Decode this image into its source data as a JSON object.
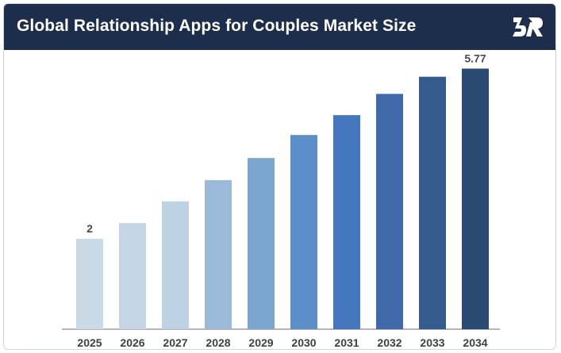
{
  "header": {
    "title": "Global Relationship Apps for Couples Market Size",
    "logo_icon": "brand-logo-icon"
  },
  "colors": {
    "header_bg": "#1d2e4d",
    "bars": [
      "#c9d9e6",
      "#c4d6e5",
      "#bdd2e3",
      "#9bbad8",
      "#7aa6cf",
      "#5c8fc9",
      "#4577be",
      "#3f69a9",
      "#355b8e",
      "#2b4a72"
    ]
  },
  "chart_data": {
    "type": "bar",
    "title": "Global Relationship Apps for Couples Market Size",
    "categories": [
      "2025",
      "2026",
      "2027",
      "2028",
      "2029",
      "2030",
      "2031",
      "2032",
      "2033",
      "2034"
    ],
    "values": [
      2,
      2.35,
      2.83,
      3.3,
      3.79,
      4.3,
      4.74,
      5.21,
      5.59,
      5.77
    ],
    "data_labels": [
      "2",
      "",
      "",
      "",
      "",
      "",
      "",
      "",
      "",
      "5.77"
    ],
    "xlabel": "",
    "ylabel": "",
    "ylim": [
      0,
      6.2
    ],
    "grid": false,
    "legend": "none"
  }
}
